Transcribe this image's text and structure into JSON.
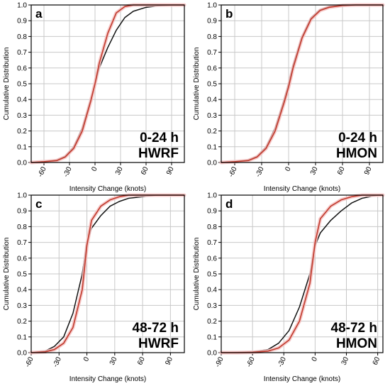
{
  "figure": {
    "colors": {
      "observed": "#111111",
      "model": "#c0392b",
      "model_band": "#f4c2c2",
      "grid": "#c8c8c8"
    }
  },
  "chart_data": [
    {
      "type": "line",
      "panel_letter": "a",
      "annotation": [
        "0-24 h",
        "HWRF"
      ],
      "xlabel": "Intensity Change (knots)",
      "ylabel": "Cumulative Distribution",
      "xlim": [
        -75,
        105
      ],
      "ylim": [
        0,
        1
      ],
      "xticks": [
        -60,
        -30,
        0,
        30,
        60,
        90
      ],
      "yticks": [
        0.0,
        0.1,
        0.2,
        0.3,
        0.4,
        0.5,
        0.6,
        0.7,
        0.8,
        0.9,
        1.0
      ],
      "grid": true,
      "x": [
        -75,
        -60,
        -45,
        -35,
        -25,
        -15,
        -5,
        0,
        5,
        15,
        25,
        35,
        45,
        60,
        75,
        90,
        105
      ],
      "series": [
        {
          "role": "observed",
          "values": [
            0.0,
            0.005,
            0.015,
            0.04,
            0.1,
            0.22,
            0.4,
            0.5,
            0.6,
            0.73,
            0.84,
            0.92,
            0.96,
            0.985,
            0.995,
            1.0,
            1.0
          ]
        },
        {
          "role": "model",
          "values": [
            0.0,
            0.005,
            0.012,
            0.035,
            0.09,
            0.2,
            0.39,
            0.5,
            0.63,
            0.82,
            0.95,
            0.99,
            1.0,
            1.0,
            1.0,
            1.0,
            1.0
          ]
        }
      ]
    },
    {
      "type": "line",
      "panel_letter": "b",
      "annotation": [
        "0-24 h",
        "HMON"
      ],
      "xlabel": "Intensity Change (knots)",
      "ylabel": "Cumulative Distribution",
      "xlim": [
        -75,
        105
      ],
      "ylim": [
        0,
        1
      ],
      "xticks": [
        -60,
        -30,
        0,
        30,
        60,
        90
      ],
      "yticks": [
        0.0,
        0.1,
        0.2,
        0.3,
        0.4,
        0.5,
        0.6,
        0.7,
        0.8,
        0.9,
        1.0
      ],
      "grid": true,
      "x": [
        -75,
        -60,
        -45,
        -35,
        -25,
        -15,
        -5,
        0,
        5,
        15,
        25,
        35,
        45,
        60,
        75,
        90,
        105
      ],
      "series": [
        {
          "role": "observed",
          "values": [
            0.0,
            0.005,
            0.015,
            0.04,
            0.1,
            0.22,
            0.4,
            0.5,
            0.62,
            0.8,
            0.92,
            0.97,
            0.99,
            1.0,
            1.0,
            1.0,
            1.0
          ]
        },
        {
          "role": "model",
          "values": [
            0.0,
            0.005,
            0.012,
            0.035,
            0.09,
            0.2,
            0.38,
            0.48,
            0.6,
            0.79,
            0.91,
            0.965,
            0.985,
            0.997,
            1.0,
            1.0,
            1.0
          ]
        }
      ]
    },
    {
      "type": "line",
      "panel_letter": "c",
      "annotation": [
        "48-72 h",
        "HWRF"
      ],
      "xlabel": "Intensity Change (knots)",
      "ylabel": "Cumulative Distribution",
      "xlim": [
        -60,
        105
      ],
      "ylim": [
        0,
        1
      ],
      "xticks": [
        -60,
        -30,
        0,
        30,
        60,
        90
      ],
      "yticks": [
        0.0,
        0.1,
        0.2,
        0.3,
        0.4,
        0.5,
        0.6,
        0.7,
        0.8,
        0.9,
        1.0
      ],
      "grid": true,
      "x": [
        -60,
        -45,
        -35,
        -25,
        -15,
        -5,
        0,
        5,
        15,
        25,
        35,
        45,
        60,
        75,
        90,
        105
      ],
      "series": [
        {
          "role": "observed",
          "values": [
            0.0,
            0.01,
            0.04,
            0.1,
            0.25,
            0.5,
            0.7,
            0.79,
            0.87,
            0.93,
            0.96,
            0.98,
            0.99,
            1.0,
            1.0,
            1.0
          ]
        },
        {
          "role": "model",
          "values": [
            0.0,
            0.005,
            0.02,
            0.06,
            0.16,
            0.4,
            0.68,
            0.84,
            0.93,
            0.97,
            0.99,
            1.0,
            1.0,
            1.0,
            1.0,
            1.0
          ]
        }
      ]
    },
    {
      "type": "line",
      "panel_letter": "d",
      "annotation": [
        "48-72 h",
        "HMON"
      ],
      "xlabel": "Intensity Change (knots)",
      "ylabel": "Cumulative Distribution",
      "xlim": [
        -90,
        65
      ],
      "ylim": [
        0,
        1
      ],
      "xticks": [
        -90,
        -60,
        -30,
        0,
        30,
        60
      ],
      "yticks": [
        0.0,
        0.1,
        0.2,
        0.3,
        0.4,
        0.5,
        0.6,
        0.7,
        0.8,
        0.9,
        1.0
      ],
      "grid": true,
      "x": [
        -90,
        -75,
        -60,
        -45,
        -35,
        -25,
        -15,
        -5,
        0,
        5,
        15,
        25,
        35,
        45,
        60,
        65
      ],
      "series": [
        {
          "role": "observed",
          "values": [
            0.0,
            0.002,
            0.005,
            0.02,
            0.06,
            0.14,
            0.29,
            0.5,
            0.68,
            0.76,
            0.84,
            0.9,
            0.95,
            0.98,
            1.0,
            1.0
          ]
        },
        {
          "role": "model",
          "values": [
            0.0,
            0.0,
            0.002,
            0.01,
            0.03,
            0.08,
            0.2,
            0.44,
            0.7,
            0.85,
            0.93,
            0.97,
            0.99,
            1.0,
            1.0,
            1.0
          ]
        }
      ]
    }
  ]
}
